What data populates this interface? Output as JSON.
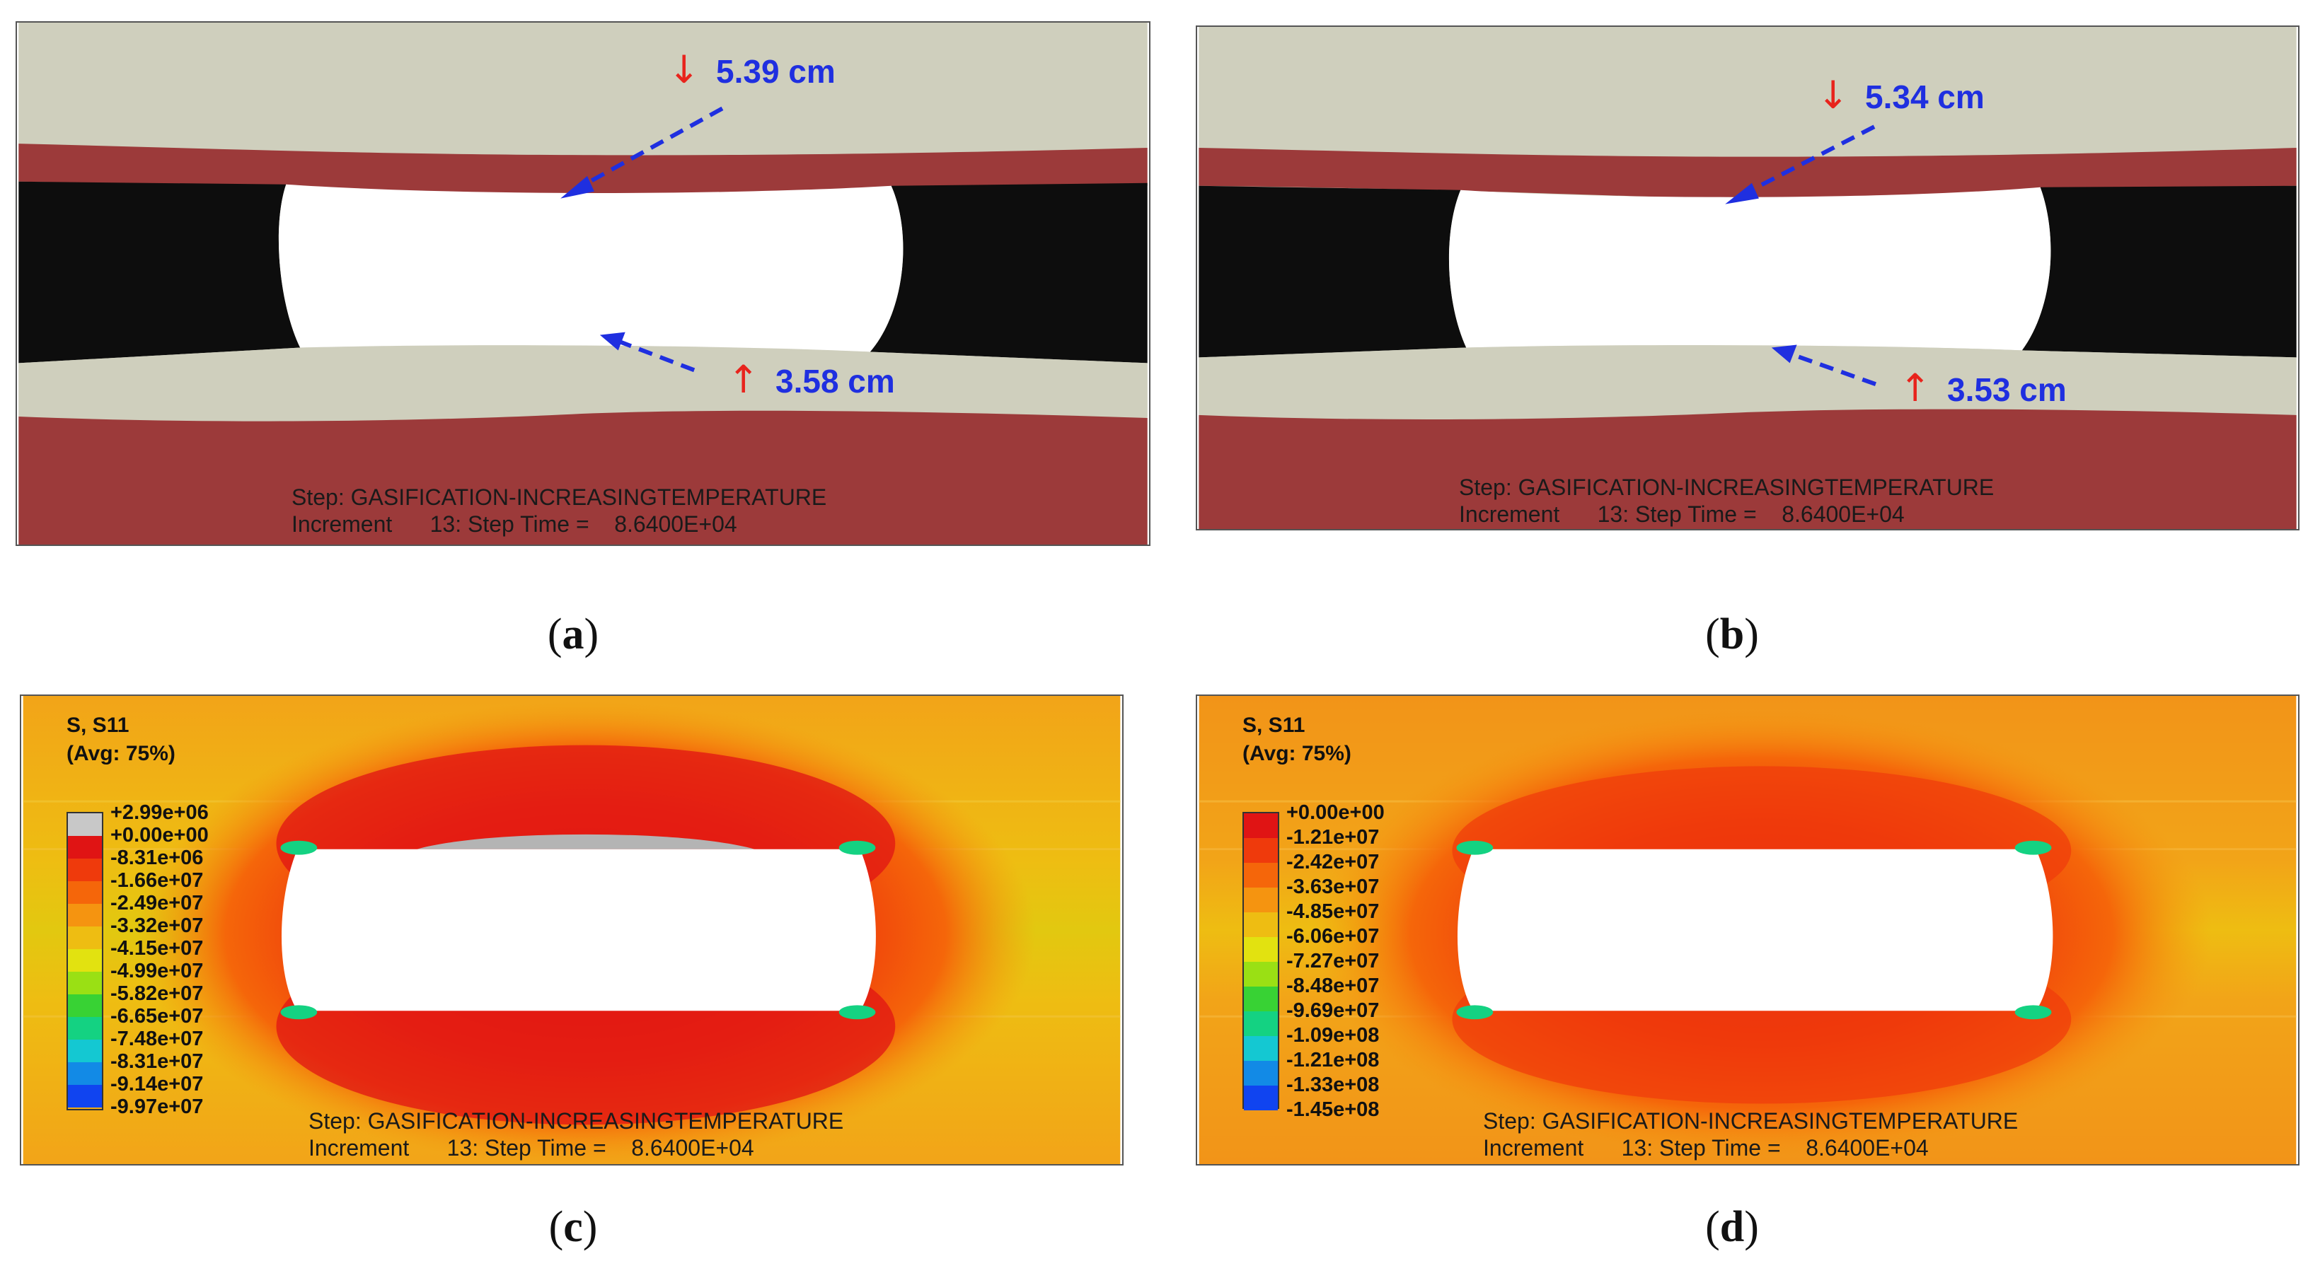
{
  "panels": {
    "a": {
      "caption_open": "(",
      "caption_letter": "a",
      "caption_close": ")",
      "measure_top": "5.39 cm",
      "measure_bottom": "3.58 cm",
      "step_line": "Step: GASIFICATION-INCREASINGTEMPERATURE",
      "increment_line": "Increment      13: Step Time =    8.6400E+04"
    },
    "b": {
      "caption_open": "(",
      "caption_letter": "b",
      "caption_close": ")",
      "measure_top": "5.34 cm",
      "measure_bottom": "3.53 cm",
      "step_line": "Step: GASIFICATION-INCREASINGTEMPERATURE",
      "increment_line": "Increment      13: Step Time =    8.6400E+04"
    },
    "c": {
      "caption_open": "(",
      "caption_letter": "c",
      "caption_close": ")",
      "legend_title_1": "S, S11",
      "legend_title_2": "(Avg: 75%)",
      "legend_values": [
        "+2.99e+06",
        "+0.00e+00",
        "-8.31e+06",
        "-1.66e+07",
        "-2.49e+07",
        "-3.32e+07",
        "-4.15e+07",
        "-4.99e+07",
        "-5.82e+07",
        "-6.65e+07",
        "-7.48e+07",
        "-8.31e+07",
        "-9.14e+07",
        "-9.97e+07"
      ],
      "legend_colors": [
        "#c8c8c8",
        "#e01414",
        "#ef3a0c",
        "#f5660a",
        "#f59410",
        "#eebd12",
        "#e2e210",
        "#9ae014",
        "#38d234",
        "#14d282",
        "#14c8d2",
        "#128ae6",
        "#1044f0"
      ],
      "step_line": "Step: GASIFICATION-INCREASINGTEMPERATURE",
      "increment_line": "Increment      13: Step Time =    8.6400E+04"
    },
    "d": {
      "caption_open": "(",
      "caption_letter": "d",
      "caption_close": ")",
      "legend_title_1": "S, S11",
      "legend_title_2": "(Avg: 75%)",
      "legend_values": [
        "+0.00e+00",
        "-1.21e+07",
        "-2.42e+07",
        "-3.63e+07",
        "-4.85e+07",
        "-6.06e+07",
        "-7.27e+07",
        "-8.48e+07",
        "-9.69e+07",
        "-1.09e+08",
        "-1.21e+08",
        "-1.33e+08",
        "-1.45e+08"
      ],
      "legend_colors": [
        "#e01414",
        "#ef3a0c",
        "#f5660a",
        "#f59410",
        "#eebd12",
        "#e2e210",
        "#9ae014",
        "#38d234",
        "#14d282",
        "#14c8d2",
        "#128ae6",
        "#1044f0"
      ],
      "step_line": "Step: GASIFICATION-INCREASINGTEMPERATURE",
      "increment_line": "Increment      13: Step Time =    8.6400E+04"
    }
  },
  "symbols": {
    "down_arrow": "↓",
    "up_arrow": "↑"
  },
  "colors": {
    "rock_light": "#cfcfbd",
    "rock_red": "#9c3a3a",
    "coal_black": "#0d0d0d",
    "cavity": "#ffffff",
    "measure_text": "#1f2fe0",
    "arrow_red": "#e8231c"
  }
}
